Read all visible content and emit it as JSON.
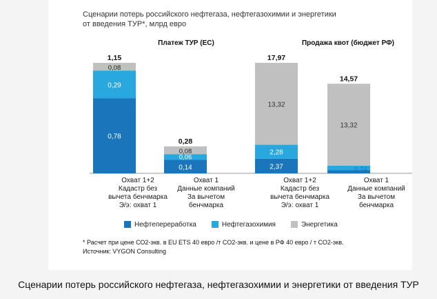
{
  "page": {
    "caption": "Сценарии потерь российского нефтегаза, нефтегазохимии и энергетики от введения ТУР"
  },
  "chart_data": {
    "type": "bar",
    "stacked": true,
    "title": "Сценарии потерь российского нефтегаза, нефтегазохимии и энергетики от введения ТУР*, млрд евро",
    "title_lines": [
      "Сценарии потерь российского нефтегаза, нефтегазохимии и энергетики",
      "от введения ТУР*, млрд евро"
    ],
    "colors": {
      "Нефтепереработка": "#1b75bb",
      "Нефтегазохимия": "#29a8e0",
      "Энергетика": "#c0c0c0"
    },
    "legend": {
      "placement": "bottom",
      "entries": [
        "Нефтепереработка",
        "Нефтегазохимия",
        "Энергетика"
      ]
    },
    "panels": [
      {
        "title": "Платеж ТУР (ЕС)",
        "categories": [
          [
            "Охват 1+2",
            "Кадастр без",
            "вычета бенчмарка",
            "Э/э: охват 1"
          ],
          [
            "Охват 1",
            "Данные компаний",
            "За вычетом",
            "бенчмарка"
          ]
        ],
        "ylim": [
          0,
          1.15
        ],
        "series": [
          {
            "name": "Нефтепереработка",
            "values": [
              0.78,
              0.14
            ],
            "labels": [
              "0,78",
              "0,14"
            ]
          },
          {
            "name": "Нефтегазохимия",
            "values": [
              0.29,
              0.06
            ],
            "labels": [
              "0,29",
              "0,06"
            ]
          },
          {
            "name": "Энергетика",
            "values": [
              0.08,
              0.08
            ],
            "labels": [
              "0,08",
              "0,08"
            ]
          }
        ],
        "totals": [
          "1,15",
          "0,28"
        ]
      },
      {
        "title": "Продажа квот (бюджет РФ)",
        "categories": [
          [
            "Охват 1+2",
            "Кадастр без",
            "вычета бенчмарка",
            "Э/э: охват 1"
          ],
          [
            "Охват 1",
            "Данные компаний",
            "За вычетом",
            "бенчмарка"
          ]
        ],
        "ylim": [
          0,
          17.97
        ],
        "series": [
          {
            "name": "Нефтепереработка",
            "values": [
              2.37,
              0.51
            ],
            "labels": [
              "2,37",
              "0,51"
            ]
          },
          {
            "name": "Нефтегазохимия",
            "values": [
              2.28,
              0.74
            ],
            "labels": [
              "2,28",
              "0,74"
            ]
          },
          {
            "name": "Энергетика",
            "values": [
              13.32,
              13.32
            ],
            "labels": [
              "13,32",
              "13,32"
            ]
          }
        ],
        "totals": [
          "17,97",
          "14,57"
        ]
      }
    ],
    "footnotes": [
      "* Расчет при цене СО2-экв. в EU ETS 40 евро /т СО2-экв. и цене в РФ 40 евро / т СО2-экв.",
      "Источник: VYGON Consulting"
    ]
  }
}
